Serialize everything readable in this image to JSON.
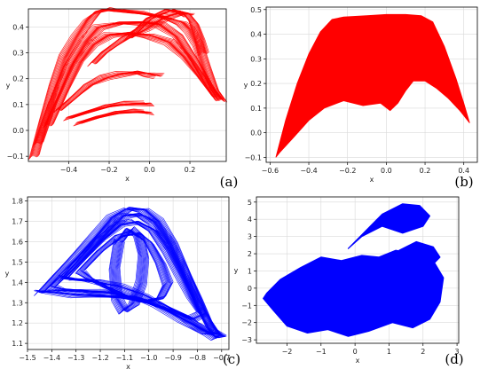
{
  "chart_data": [
    {
      "id": "a",
      "type": "line",
      "panel_label": "(a)",
      "xlabel": "x",
      "ylabel": "y",
      "xlim": [
        -0.6,
        0.38
      ],
      "ylim": [
        -0.12,
        0.47
      ],
      "xticks": [
        -0.4,
        -0.2,
        0.0,
        0.2
      ],
      "xtick_labels": [
        "−0.4",
        "−0.2",
        "0.0",
        "0.2"
      ],
      "yticks": [
        -0.1,
        0.0,
        0.1,
        0.2,
        0.3,
        0.4
      ],
      "ytick_labels": [
        "−0.1",
        "0.0",
        "0.1",
        "0.2",
        "0.3",
        "0.4"
      ],
      "grid": true,
      "color": "#ff0000",
      "series": [
        {
          "x": [
            -0.57,
            -0.52,
            -0.47,
            -0.42,
            -0.36,
            -0.3,
            -0.26,
            -0.22,
            -0.18,
            -0.1,
            0.0,
            0.08,
            0.16,
            0.2,
            0.24,
            0.28,
            0.32,
            0.36
          ],
          "y": [
            -0.1,
            0.04,
            0.17,
            0.28,
            0.36,
            0.43,
            0.46,
            0.465,
            0.46,
            0.455,
            0.45,
            0.44,
            0.42,
            0.39,
            0.33,
            0.24,
            0.16,
            0.12
          ]
        },
        {
          "x": [
            -0.55,
            -0.48,
            -0.4,
            -0.32,
            -0.25,
            -0.15,
            -0.05,
            0.05,
            0.14,
            0.22,
            0.3,
            0.35
          ],
          "y": [
            -0.05,
            0.1,
            0.24,
            0.34,
            0.4,
            0.42,
            0.42,
            0.41,
            0.36,
            0.27,
            0.17,
            0.12
          ]
        },
        {
          "x": [
            -0.5,
            -0.42,
            -0.35,
            -0.28,
            -0.2,
            -0.1,
            0.0,
            0.1,
            0.18,
            0.26,
            0.33
          ],
          "y": [
            0.02,
            0.15,
            0.26,
            0.33,
            0.37,
            0.38,
            0.37,
            0.34,
            0.28,
            0.2,
            0.13
          ]
        },
        {
          "x": [
            -0.45,
            -0.38,
            -0.3,
            -0.22,
            -0.14,
            -0.06,
            0.0,
            0.05
          ],
          "y": [
            0.08,
            0.12,
            0.17,
            0.2,
            0.22,
            0.23,
            0.22,
            0.21
          ]
        },
        {
          "x": [
            -0.4,
            -0.3,
            -0.2,
            -0.1,
            0.0
          ],
          "y": [
            0.05,
            0.07,
            0.09,
            0.1,
            0.105
          ]
        },
        {
          "x": [
            -0.35,
            -0.25,
            -0.15,
            -0.05,
            0.0
          ],
          "y": [
            0.03,
            0.05,
            0.065,
            0.07,
            0.07
          ]
        },
        {
          "x": [
            -0.28,
            -0.22,
            -0.12,
            -0.02,
            0.08,
            0.16,
            0.2
          ],
          "y": [
            0.26,
            0.3,
            0.35,
            0.39,
            0.44,
            0.46,
            0.45
          ]
        },
        {
          "x": [
            -0.1,
            0.0,
            0.1,
            0.18,
            0.22,
            0.25,
            0.27
          ],
          "y": [
            0.36,
            0.43,
            0.46,
            0.45,
            0.42,
            0.36,
            0.3
          ]
        }
      ]
    },
    {
      "id": "b",
      "type": "area",
      "panel_label": "(b)",
      "xlabel": "x",
      "ylabel": "y",
      "xlim": [
        -0.62,
        0.47
      ],
      "ylim": [
        -0.12,
        0.51
      ],
      "xticks": [
        -0.6,
        -0.4,
        -0.2,
        0.0,
        0.2,
        0.4
      ],
      "xtick_labels": [
        "−0.6",
        "−0.4",
        "−0.2",
        "0.0",
        "0.2",
        "0.4"
      ],
      "yticks": [
        -0.1,
        0.0,
        0.1,
        0.2,
        0.3,
        0.4,
        0.5
      ],
      "ytick_labels": [
        "−0.1",
        "0.0",
        "0.1",
        "0.2",
        "0.3",
        "0.4",
        "0.5"
      ],
      "grid": true,
      "color": "#ff0000",
      "outline": {
        "x": [
          -0.57,
          -0.52,
          -0.46,
          -0.4,
          -0.34,
          -0.28,
          -0.22,
          -0.1,
          0.0,
          0.1,
          0.18,
          0.24,
          0.3,
          0.36,
          0.4,
          0.43,
          0.38,
          0.32,
          0.26,
          0.2,
          0.14,
          0.1,
          0.06,
          0.02,
          -0.03,
          -0.12,
          -0.22,
          -0.32,
          -0.4,
          -0.48,
          -0.55
        ],
        "y": [
          -0.1,
          0.05,
          0.2,
          0.32,
          0.41,
          0.46,
          0.47,
          0.475,
          0.48,
          0.48,
          0.475,
          0.45,
          0.35,
          0.22,
          0.12,
          0.04,
          0.09,
          0.14,
          0.18,
          0.21,
          0.21,
          0.17,
          0.12,
          0.09,
          0.12,
          0.11,
          0.13,
          0.1,
          0.05,
          -0.02,
          -0.08
        ]
      }
    },
    {
      "id": "c",
      "type": "line",
      "panel_label": "(c)",
      "xlabel": "x",
      "ylabel": "y",
      "xlim": [
        -1.5,
        -0.67
      ],
      "ylim": [
        1.07,
        1.82
      ],
      "xticks": [
        -1.5,
        -1.4,
        -1.3,
        -1.2,
        -1.1,
        -1.0,
        -0.9,
        -0.8,
        -0.7
      ],
      "xtick_labels": [
        "−1.5",
        "−1.4",
        "−1.3",
        "−1.2",
        "−1.1",
        "−1.0",
        "−0.9",
        "−0.8",
        "−0.7"
      ],
      "yticks": [
        1.1,
        1.2,
        1.3,
        1.4,
        1.5,
        1.6,
        1.7,
        1.8
      ],
      "ytick_labels": [
        "1.1",
        "1.2",
        "1.3",
        "1.4",
        "1.5",
        "1.6",
        "1.7",
        "1.8"
      ],
      "grid": true,
      "color": "#0000ff",
      "series": [
        {
          "x": [
            -1.45,
            -1.38,
            -1.3,
            -1.22,
            -1.15,
            -1.08,
            -1.02,
            -0.96,
            -0.9,
            -0.84,
            -0.78,
            -0.74,
            -0.7,
            -0.72,
            -0.8,
            -0.9,
            -1.0,
            -1.1,
            -1.2,
            -1.3,
            -1.4,
            -1.45
          ],
          "y": [
            1.35,
            1.43,
            1.52,
            1.62,
            1.72,
            1.77,
            1.76,
            1.7,
            1.58,
            1.42,
            1.26,
            1.18,
            1.14,
            1.13,
            1.18,
            1.25,
            1.3,
            1.33,
            1.34,
            1.34,
            1.35,
            1.35
          ]
        },
        {
          "x": [
            -1.4,
            -1.32,
            -1.24,
            -1.16,
            -1.1,
            -1.04,
            -0.98,
            -0.92,
            -0.86,
            -0.8,
            -0.76,
            -0.72,
            -0.76,
            -0.86,
            -0.96,
            -1.06,
            -1.16,
            -1.26,
            -1.36,
            -1.4
          ],
          "y": [
            1.38,
            1.46,
            1.56,
            1.66,
            1.73,
            1.74,
            1.7,
            1.6,
            1.46,
            1.32,
            1.22,
            1.15,
            1.16,
            1.22,
            1.28,
            1.32,
            1.35,
            1.36,
            1.37,
            1.38
          ]
        },
        {
          "x": [
            -1.35,
            -1.28,
            -1.2,
            -1.12,
            -1.05,
            -0.98,
            -0.92,
            -0.86,
            -0.82,
            -0.78,
            -0.82,
            -0.92,
            -1.02,
            -1.12,
            -1.22,
            -1.3,
            -1.35
          ],
          "y": [
            1.42,
            1.5,
            1.6,
            1.68,
            1.7,
            1.66,
            1.56,
            1.42,
            1.32,
            1.24,
            1.22,
            1.28,
            1.34,
            1.38,
            1.4,
            1.41,
            1.42
          ]
        },
        {
          "x": [
            -1.28,
            -1.2,
            -1.12,
            -1.05,
            -1.0,
            -0.95,
            -0.92,
            -0.95,
            -1.02,
            -1.1,
            -1.18,
            -1.25,
            -1.28
          ],
          "y": [
            1.46,
            1.55,
            1.62,
            1.64,
            1.6,
            1.5,
            1.4,
            1.32,
            1.3,
            1.33,
            1.38,
            1.43,
            1.46
          ]
        },
        {
          "x": [
            -1.12,
            -1.08,
            -1.04,
            -1.02,
            -1.03,
            -1.06,
            -1.1,
            -1.13,
            -1.14,
            -1.12
          ],
          "y": [
            1.6,
            1.66,
            1.62,
            1.52,
            1.4,
            1.3,
            1.26,
            1.32,
            1.46,
            1.6
          ]
        }
      ]
    },
    {
      "id": "d",
      "type": "area",
      "panel_label": "(d)",
      "xlabel": "x",
      "ylabel": "y",
      "xlim": [
        -2.9,
        3.05
      ],
      "ylim": [
        -3.2,
        5.3
      ],
      "xticks": [
        -2,
        -1,
        0,
        1,
        2,
        3
      ],
      "xtick_labels": [
        "−2",
        "−1",
        "0",
        "1",
        "2",
        "3"
      ],
      "yticks": [
        -3,
        -2,
        -1,
        0,
        1,
        2,
        3,
        4,
        5
      ],
      "ytick_labels": [
        "−3",
        "−2",
        "−1",
        "0",
        "1",
        "2",
        "3",
        "4",
        "5"
      ],
      "grid": true,
      "color": "#0000ff",
      "regions": [
        {
          "x": [
            -2.6,
            -2.2,
            -1.6,
            -1.0,
            -0.4,
            0.2,
            0.7,
            1.2,
            1.8,
            2.3,
            2.6,
            2.5,
            2.2,
            1.7,
            1.1,
            0.4,
            -0.2,
            -0.8,
            -1.4,
            -2.0,
            -2.4,
            -2.7,
            -2.6
          ],
          "y": [
            -0.3,
            0.5,
            1.2,
            1.8,
            1.6,
            1.9,
            1.8,
            2.2,
            2.0,
            1.6,
            0.6,
            -0.8,
            -1.8,
            -2.3,
            -2.0,
            -2.5,
            -2.8,
            -2.4,
            -2.6,
            -2.2,
            -1.3,
            -0.6,
            -0.3
          ]
        },
        {
          "x": [
            -0.2,
            0.3,
            0.8,
            1.4,
            1.9,
            2.2,
            2.0,
            1.4,
            0.8,
            0.2,
            -0.2
          ],
          "y": [
            2.3,
            3.3,
            4.3,
            4.9,
            4.8,
            4.2,
            3.6,
            3.2,
            3.6,
            3.0,
            2.3
          ]
        },
        {
          "x": [
            1.3,
            1.8,
            2.3,
            2.5,
            2.3,
            1.8,
            1.3
          ],
          "y": [
            2.2,
            2.7,
            2.4,
            1.8,
            1.4,
            1.6,
            2.2
          ]
        }
      ]
    }
  ]
}
